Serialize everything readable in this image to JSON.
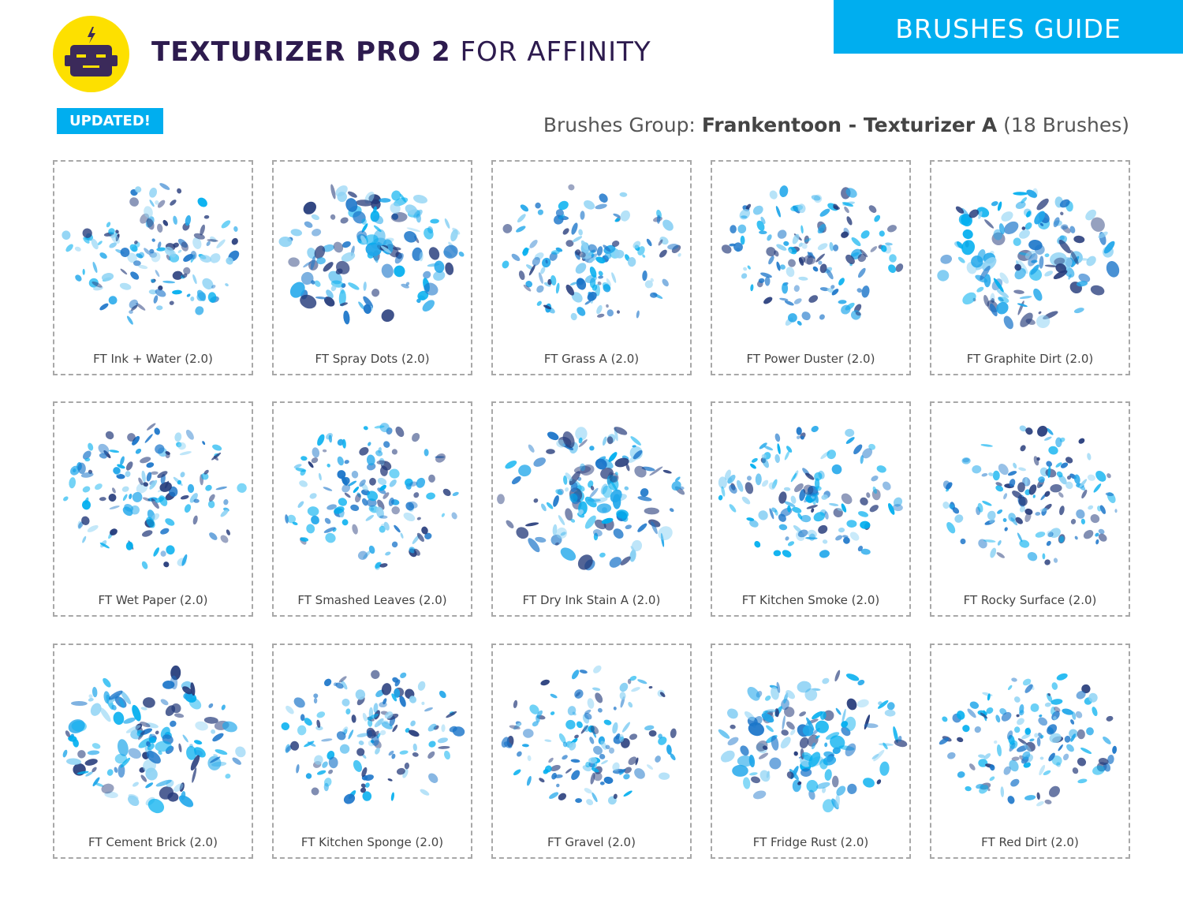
{
  "header": {
    "title_bold": "TEXTURIZER PRO 2",
    "title_light": " FOR AFFINITY",
    "guide_label": "BRUSHES GUIDE",
    "updated_badge": "UPDATED!",
    "group_prefix": "Brushes Group: ",
    "group_name": "Frankentoon - Texturizer A",
    "group_count": " (18 Brushes)",
    "logo_icon": "robot-face-icon"
  },
  "colors": {
    "accent": "#00aeef",
    "title": "#2d1b4e",
    "logo_yellow": "#fde000",
    "logo_purple": "#3b2a5a",
    "light_blue": "#8fd3f4",
    "mid_blue": "#1fa6ea",
    "deep_blue": "#1b75c9",
    "navy": "#243a7a"
  },
  "brushes": [
    {
      "label": "FT Ink + Water (2.0)"
    },
    {
      "label": "FT Spray Dots (2.0)"
    },
    {
      "label": "FT Grass A (2.0)"
    },
    {
      "label": "FT Power Duster (2.0)"
    },
    {
      "label": "FT Graphite Dirt (2.0)"
    },
    {
      "label": "FT Wet Paper (2.0)"
    },
    {
      "label": "FT Smashed Leaves (2.0)"
    },
    {
      "label": "FT Dry Ink Stain A (2.0)"
    },
    {
      "label": "FT Kitchen Smoke (2.0)"
    },
    {
      "label": "FT Rocky Surface (2.0)"
    },
    {
      "label": "FT Cement Brick (2.0)"
    },
    {
      "label": "FT Kitchen Sponge (2.0)"
    },
    {
      "label": "FT Gravel (2.0)"
    },
    {
      "label": "FT Fridge Rust (2.0)"
    },
    {
      "label": "FT Red Dirt (2.0)"
    }
  ]
}
